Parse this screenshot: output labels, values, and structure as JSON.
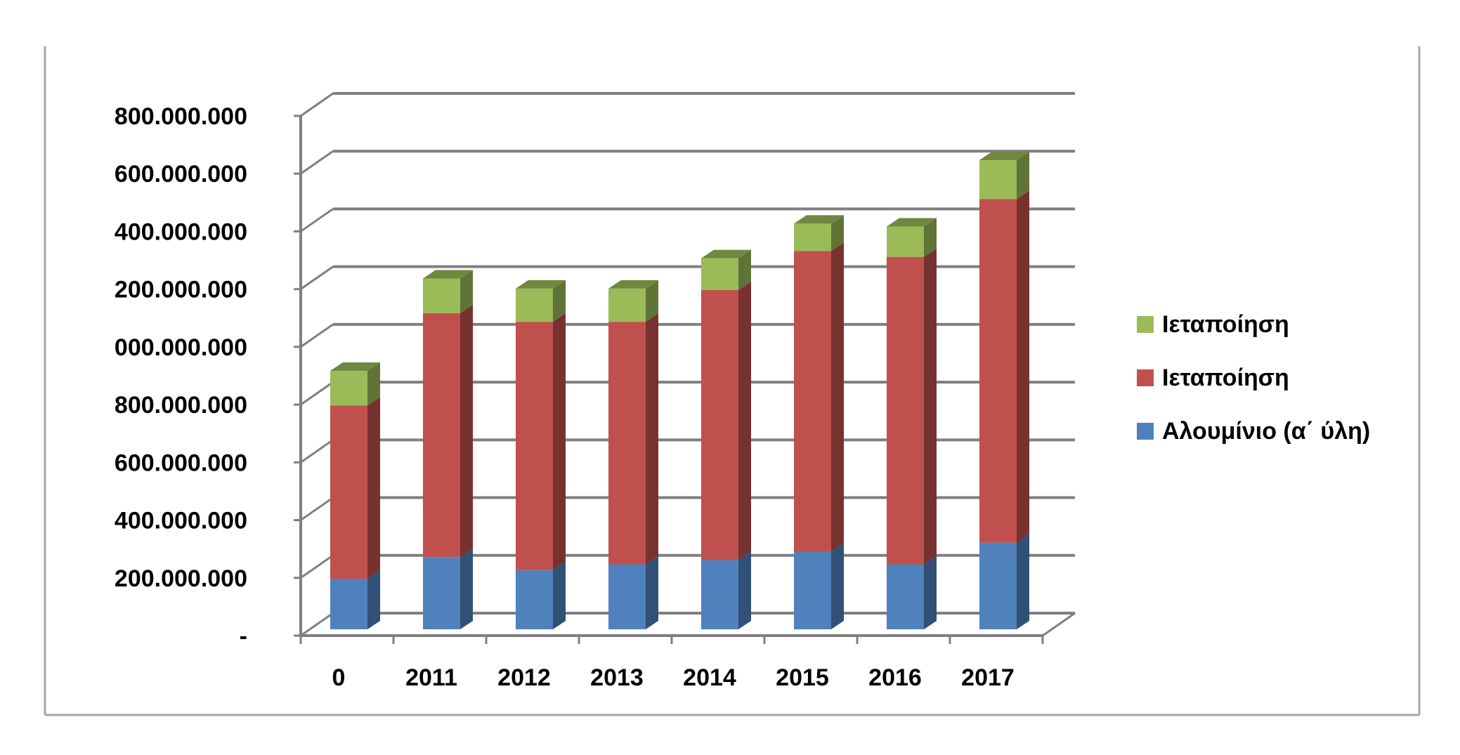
{
  "chart_data": {
    "type": "bar",
    "stacked": true,
    "three_d": true,
    "categories": [
      "0",
      "2011",
      "2012",
      "2013",
      "2014",
      "2015",
      "2016",
      "2017"
    ],
    "y_tick_labels": [
      "-",
      "200.000.000",
      "400.000.000",
      "600.000.000",
      "800.000.000",
      "000.000.000",
      "200.000.000",
      "400.000.000",
      "600.000.000",
      "800.000.000"
    ],
    "ylim": [
      0,
      1800000000
    ],
    "grid": true,
    "legend_position": "right",
    "series": [
      {
        "name": "Αλουμίνιο (α΄ ύλη)",
        "color": "#4F81BD",
        "values": [
          175000000,
          250000000,
          205000000,
          225000000,
          240000000,
          270000000,
          225000000,
          300000000
        ]
      },
      {
        "name": "Ιεταποίηση",
        "color": "#C0504D",
        "values": [
          600000000,
          845000000,
          860000000,
          840000000,
          935000000,
          1040000000,
          1065000000,
          1190000000
        ]
      },
      {
        "name": "Ιεταποίηση",
        "color": "#9BBB59",
        "values": [
          120000000,
          120000000,
          115000000,
          115000000,
          110000000,
          95000000,
          105000000,
          135000000
        ]
      }
    ]
  }
}
